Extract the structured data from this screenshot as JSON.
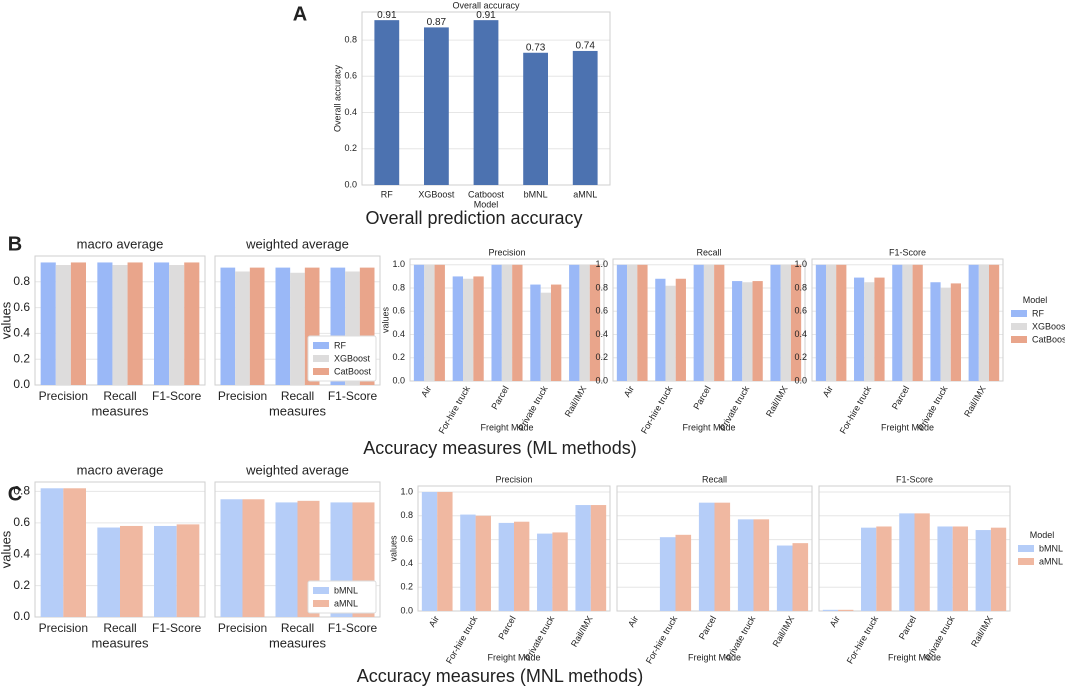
{
  "panel_labels": [
    "A",
    "B",
    "C"
  ],
  "captions": [
    "Overall prediction accuracy",
    "Accuracy measures (ML methods)",
    "Accuracy measures (MNL methods)"
  ],
  "chart_data": [
    {
      "type": "bar",
      "title": "Overall accuracy",
      "xlabel": "Model",
      "ylabel": "Overall accuracy",
      "categories": [
        "RF",
        "XGBoost",
        "Catboost",
        "bMNL",
        "aMNL"
      ],
      "values": [
        0.91,
        0.87,
        0.91,
        0.73,
        0.74
      ],
      "color": "#4c72b0",
      "data_labels": true,
      "ylim": [
        0,
        0.955
      ],
      "yticks": [
        {
          "value": 0,
          "label": "0.0"
        },
        0.2,
        0.4,
        0.6,
        0.8
      ],
      "grid": true
    },
    {
      "type": "grouped_bar",
      "title": "macro average",
      "xlabel": "measures",
      "ylabel": "values",
      "categories": [
        "Precision",
        "Recall",
        "F1-Score"
      ],
      "series": [
        {
          "name": "RF",
          "color": "#9ab8f7",
          "values": [
            0.95,
            0.95,
            0.95
          ]
        },
        {
          "name": "XGBoost",
          "color": "#dddcdc",
          "values": [
            0.93,
            0.93,
            0.93
          ]
        },
        {
          "name": "CatBoost",
          "color": "#e9a58b",
          "values": [
            0.95,
            0.95,
            0.95
          ]
        }
      ],
      "ylim": [
        0,
        1.0
      ],
      "yticks": [
        {
          "value": 0,
          "label": "0.0"
        },
        0.2,
        0.4,
        0.6,
        0.8
      ],
      "grid": true,
      "ytick_labels": true
    },
    {
      "type": "grouped_bar",
      "title": "weighted average",
      "xlabel": "measures",
      "categories": [
        "Precision",
        "Recall",
        "F1-Score"
      ],
      "series": [
        {
          "name": "RF",
          "color": "#9ab8f7",
          "values": [
            0.91,
            0.91,
            0.91
          ]
        },
        {
          "name": "XGBoost",
          "color": "#dddcdc",
          "values": [
            0.88,
            0.87,
            0.88
          ]
        },
        {
          "name": "CatBoost",
          "color": "#e9a58b",
          "values": [
            0.91,
            0.91,
            0.91
          ]
        }
      ],
      "ylim": [
        0,
        1.0
      ],
      "yticks": [
        0,
        0.2,
        0.4,
        0.6,
        0.8
      ],
      "grid": true,
      "ytick_labels": false,
      "legend": "lower right"
    },
    {
      "type": "grouped_bar",
      "title": "Precision",
      "xlabel": "Freight Mode",
      "ylabel": "values",
      "categories": [
        "Air",
        "For-hire truck",
        "Parcel",
        "Private truck",
        "Rail/IMX"
      ],
      "series": [
        {
          "name": "RF",
          "color": "#9ab8f7",
          "values": [
            1.0,
            0.9,
            1.0,
            0.83,
            1.0
          ]
        },
        {
          "name": "XGBoost",
          "color": "#dddcdc",
          "values": [
            1.0,
            0.88,
            1.0,
            0.76,
            1.0
          ]
        },
        {
          "name": "CatBoost",
          "color": "#e9a58b",
          "values": [
            1.0,
            0.9,
            1.0,
            0.83,
            1.0
          ]
        }
      ],
      "ylim": [
        0,
        1.05
      ],
      "yticks": [
        {
          "value": 0,
          "label": "0.0"
        },
        0.2,
        0.4,
        0.6,
        0.8,
        {
          "value": 1,
          "label": "1.0"
        }
      ],
      "grid": true,
      "ytick_labels": true
    },
    {
      "type": "grouped_bar",
      "title": "Recall",
      "xlabel": "Freight Mode",
      "categories": [
        "Air",
        "For-hire truck",
        "Parcel",
        "Private truck",
        "Rail/IMX"
      ],
      "series": [
        {
          "name": "RF",
          "color": "#9ab8f7",
          "values": [
            1.0,
            0.88,
            1.0,
            0.86,
            1.0
          ]
        },
        {
          "name": "XGBoost",
          "color": "#dddcdc",
          "values": [
            1.0,
            0.82,
            1.0,
            0.85,
            1.0
          ]
        },
        {
          "name": "CatBoost",
          "color": "#e9a58b",
          "values": [
            1.0,
            0.88,
            1.0,
            0.86,
            1.0
          ]
        }
      ],
      "ylim": [
        0,
        1.05
      ],
      "yticks": [
        {
          "value": 0,
          "label": "0.0"
        },
        0.2,
        0.4,
        0.6,
        0.8,
        {
          "value": 1,
          "label": "1.0"
        }
      ],
      "grid": true,
      "ytick_labels": true
    },
    {
      "type": "grouped_bar",
      "title": "F1-Score",
      "xlabel": "Freight Mode",
      "categories": [
        "Air",
        "For-hire truck",
        "Parcel",
        "Private truck",
        "Rail/IMX"
      ],
      "series": [
        {
          "name": "RF",
          "color": "#9ab8f7",
          "values": [
            1.0,
            0.89,
            1.0,
            0.85,
            1.0
          ]
        },
        {
          "name": "XGBoost",
          "color": "#dddcdc",
          "values": [
            1.0,
            0.85,
            1.0,
            0.8,
            1.0
          ]
        },
        {
          "name": "CatBoost",
          "color": "#e9a58b",
          "values": [
            1.0,
            0.89,
            1.0,
            0.84,
            1.0
          ]
        }
      ],
      "ylim": [
        0,
        1.05
      ],
      "yticks": [
        {
          "value": 0,
          "label": "0.0"
        },
        0.2,
        0.4,
        0.6,
        0.8,
        {
          "value": 1,
          "label": "1.0"
        }
      ],
      "grid": true,
      "ytick_labels": true,
      "legend": "right outside",
      "legend_title": "Model"
    },
    {
      "type": "grouped_bar",
      "title": "macro average",
      "xlabel": "measures",
      "ylabel": "values",
      "categories": [
        "Precision",
        "Recall",
        "F1-Score"
      ],
      "series": [
        {
          "name": "bMNL",
          "color": "#b5cdf8",
          "values": [
            0.82,
            0.57,
            0.58
          ]
        },
        {
          "name": "aMNL",
          "color": "#f0b8a1",
          "values": [
            0.82,
            0.58,
            0.59
          ]
        }
      ],
      "ylim": [
        0,
        0.86
      ],
      "yticks": [
        {
          "value": 0,
          "label": "0.0"
        },
        0.2,
        0.4,
        0.6,
        0.8
      ],
      "grid": true,
      "ytick_labels": true
    },
    {
      "type": "grouped_bar",
      "title": "weighted average",
      "xlabel": "measures",
      "categories": [
        "Precision",
        "Recall",
        "F1-Score"
      ],
      "series": [
        {
          "name": "bMNL",
          "color": "#b5cdf8",
          "values": [
            0.75,
            0.73,
            0.73
          ]
        },
        {
          "name": "aMNL",
          "color": "#f0b8a1",
          "values": [
            0.75,
            0.74,
            0.73
          ]
        }
      ],
      "ylim": [
        0,
        0.86
      ],
      "yticks": [
        0,
        0.2,
        0.4,
        0.6,
        0.8
      ],
      "grid": true,
      "ytick_labels": false,
      "legend": "lower right"
    },
    {
      "type": "grouped_bar",
      "title": "Precision",
      "xlabel": "Freight Mode",
      "ylabel": "values",
      "categories": [
        "Air",
        "For-hire truck",
        "Parcel",
        "Private truck",
        "Rail/IMX"
      ],
      "series": [
        {
          "name": "bMNL",
          "color": "#b5cdf8",
          "values": [
            1.0,
            0.81,
            0.74,
            0.65,
            0.89
          ]
        },
        {
          "name": "aMNL",
          "color": "#f0b8a1",
          "values": [
            1.0,
            0.8,
            0.75,
            0.66,
            0.89
          ]
        }
      ],
      "ylim": [
        0,
        1.05
      ],
      "yticks": [
        {
          "value": 0,
          "label": "0.0"
        },
        0.2,
        0.4,
        0.6,
        0.8,
        {
          "value": 1,
          "label": "1.0"
        }
      ],
      "grid": true,
      "ytick_labels": true
    },
    {
      "type": "grouped_bar",
      "title": "Recall",
      "xlabel": "Freight Mode",
      "categories": [
        "Air",
        "For-hire truck",
        "Parcel",
        "Private truck",
        "Rail/IMX"
      ],
      "series": [
        {
          "name": "bMNL",
          "color": "#b5cdf8",
          "values": [
            0,
            0.62,
            0.91,
            0.77,
            0.55
          ]
        },
        {
          "name": "aMNL",
          "color": "#f0b8a1",
          "values": [
            0,
            0.64,
            0.91,
            0.77,
            0.57
          ]
        }
      ],
      "ylim": [
        0,
        1.05
      ],
      "yticks": [
        0,
        0.2,
        0.4,
        0.6,
        0.8,
        1
      ],
      "grid": true,
      "ytick_labels": false
    },
    {
      "type": "grouped_bar",
      "title": "F1-Score",
      "xlabel": "Freight Mode",
      "categories": [
        "Air",
        "For-hire truck",
        "Parcel",
        "Private truck",
        "Rail/IMX"
      ],
      "series": [
        {
          "name": "bMNL",
          "color": "#b5cdf8",
          "values": [
            0.01,
            0.7,
            0.82,
            0.71,
            0.68
          ]
        },
        {
          "name": "aMNL",
          "color": "#f0b8a1",
          "values": [
            0.01,
            0.71,
            0.82,
            0.71,
            0.7
          ]
        }
      ],
      "ylim": [
        0,
        1.05
      ],
      "yticks": [
        0,
        0.2,
        0.4,
        0.6,
        0.8,
        1
      ],
      "grid": true,
      "ytick_labels": false,
      "legend": "right outside",
      "legend_title": "Model"
    }
  ]
}
